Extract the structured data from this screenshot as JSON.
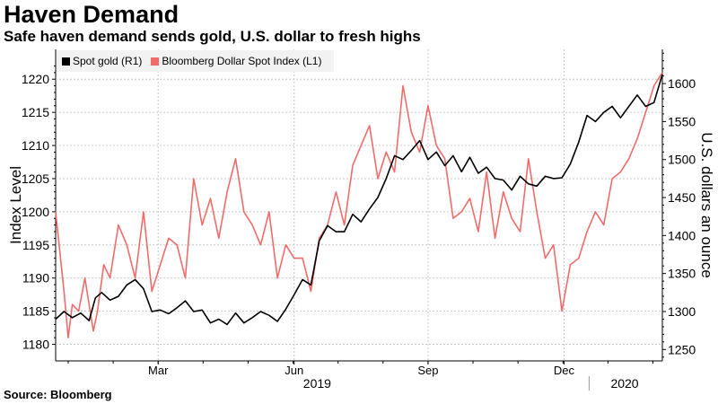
{
  "header": {
    "title": "Haven Demand",
    "subtitle": "Safe haven demand sends gold, U.S. dollar to fresh highs"
  },
  "footer": {
    "source": "Source: Bloomberg"
  },
  "colors": {
    "gold": "#000000",
    "dollar": "#f06b6b",
    "grid": "#c8c8c8",
    "legend_bg": "#f2f2f2"
  },
  "chart_data": {
    "type": "line",
    "title": "Haven Demand",
    "subtitle": "Safe haven demand sends gold, U.S. dollar to fresh highs",
    "ylabel_left": "Index Level",
    "ylabel_right": "U.S. dollars an ounce",
    "ylim_left": [
      1177.5,
      1224.5
    ],
    "ylim_right": [
      1235,
      1645
    ],
    "yticks_left": [
      "1180",
      "1185",
      "1190",
      "1195",
      "1200",
      "1205",
      "1210",
      "1215",
      "1220"
    ],
    "yticks_right": [
      "1250",
      "1300",
      "1350",
      "1400",
      "1450",
      "1500",
      "1550",
      "1600"
    ],
    "x_range": [
      0,
      290
    ],
    "x_year_boundaries": [
      0,
      255
    ],
    "month_labels": [
      {
        "label": "Mar",
        "x": 49
      },
      {
        "label": "Jun",
        "x": 114
      },
      {
        "label": "Sep",
        "x": 178
      },
      {
        "label": "Dec",
        "x": 243
      }
    ],
    "year_labels": [
      {
        "label": "2019",
        "x": 125
      },
      {
        "label": "2020",
        "x": 272
      }
    ],
    "grid": true,
    "legend": {
      "position": "top-left",
      "entries": [
        "Spot gold (R1)",
        "Bloomberg Dollar Spot Index (L1)"
      ]
    },
    "series": [
      {
        "name": "Spot gold (R1)",
        "axis": "right",
        "color": "#000000",
        "x": [
          0,
          4,
          8,
          12,
          16,
          19,
          22,
          26,
          30,
          34,
          38,
          42,
          46,
          50,
          54,
          58,
          62,
          66,
          70,
          74,
          78,
          82,
          86,
          90,
          94,
          98,
          102,
          106,
          110,
          114,
          118,
          122,
          126,
          130,
          134,
          138,
          142,
          146,
          150,
          154,
          158,
          162,
          166,
          170,
          174,
          178,
          182,
          186,
          190,
          194,
          198,
          202,
          206,
          210,
          214,
          218,
          222,
          226,
          230,
          234,
          238,
          242,
          246,
          250,
          254,
          258,
          262,
          266,
          270,
          274,
          278,
          282,
          286,
          290
        ],
        "values": [
          1290,
          1300,
          1292,
          1298,
          1288,
          1318,
          1325,
          1315,
          1320,
          1335,
          1342,
          1330,
          1300,
          1302,
          1297,
          1305,
          1314,
          1300,
          1302,
          1285,
          1290,
          1283,
          1298,
          1285,
          1292,
          1300,
          1295,
          1287,
          1303,
          1322,
          1342,
          1335,
          1393,
          1413,
          1405,
          1405,
          1428,
          1418,
          1435,
          1450,
          1475,
          1505,
          1500,
          1512,
          1525,
          1500,
          1510,
          1492,
          1505,
          1484,
          1503,
          1482,
          1490,
          1475,
          1473,
          1460,
          1478,
          1468,
          1465,
          1478,
          1475,
          1476,
          1494,
          1523,
          1558,
          1550,
          1562,
          1570,
          1555,
          1570,
          1585,
          1570,
          1575,
          1612
        ]
      },
      {
        "name": "Bloomberg Dollar Spot Index (L1)",
        "axis": "left",
        "color": "#f06b6b",
        "x": [
          0,
          4,
          6,
          8,
          11,
          14,
          18,
          20,
          23,
          26,
          30,
          34,
          38,
          42,
          46,
          50,
          54,
          58,
          62,
          66,
          70,
          74,
          78,
          82,
          86,
          90,
          94,
          98,
          102,
          106,
          110,
          114,
          118,
          122,
          126,
          130,
          134,
          138,
          142,
          146,
          150,
          154,
          158,
          162,
          166,
          170,
          174,
          178,
          182,
          186,
          190,
          194,
          198,
          202,
          206,
          210,
          214,
          218,
          222,
          226,
          230,
          234,
          238,
          242,
          246,
          250,
          254,
          258,
          262,
          266,
          270,
          274,
          278,
          282,
          286,
          290
        ],
        "values": [
          1200,
          1188,
          1181,
          1186,
          1185,
          1190,
          1182,
          1185,
          1192,
          1190,
          1198,
          1195,
          1190,
          1200,
          1188,
          1192,
          1196,
          1195,
          1190,
          1205,
          1198,
          1202,
          1196,
          1203,
          1208,
          1200,
          1198,
          1195,
          1200,
          1190,
          1195,
          1193,
          1193,
          1188,
          1196,
          1198,
          1203,
          1198,
          1207,
          1210,
          1213,
          1205,
          1209,
          1206,
          1219,
          1212,
          1209,
          1216,
          1210,
          1208,
          1199,
          1200,
          1202,
          1197,
          1206,
          1196,
          1203,
          1199,
          1197,
          1208,
          1200,
          1193,
          1195,
          1185,
          1192,
          1193,
          1197,
          1200,
          1198,
          1205,
          1206,
          1208,
          1211,
          1215,
          1219,
          1221
        ]
      }
    ]
  }
}
